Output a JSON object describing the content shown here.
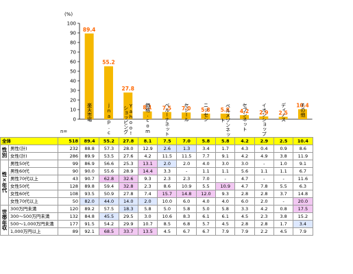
{
  "chart_data": {
    "type": "bar",
    "y_unit": "(%)",
    "ylim": [
      0,
      100
    ],
    "yticks": [
      0,
      10,
      20,
      30,
      40,
      50,
      60,
      70,
      80,
      90,
      100
    ],
    "color_bar": "#f5b800",
    "color_label": "#ff6600",
    "categories": [
      "楽天市場",
      "jnap.co.jp",
      "Yahoo!ショッピング",
      "価格.com",
      "ベルーナネット",
      "セシール",
      "ニッセン",
      "ベルメゾンネット",
      "セブンネット",
      "イオンショップ",
      "ディノス",
      "その他"
    ],
    "values": [
      89.4,
      55.2,
      27.8,
      8.1,
      7.5,
      7.0,
      5.8,
      5.8,
      4.2,
      2.9,
      2.5,
      10.4
    ],
    "value_labels": [
      "89.4",
      "55.2",
      "27.8",
      "8.1",
      "7.5",
      "7.0",
      "5.8",
      "5.8",
      "4.2",
      "2.9",
      "2.5",
      "10.4"
    ]
  },
  "header_labels": [
    "楽天市場",
    "jnap.co.jp",
    "Yahoo!ショッピング",
    "価格.com",
    "ベルーナネット",
    "セシール",
    "ニッセン",
    "ベルメゾンネット",
    "セブンネット",
    "イオンショップ",
    "ディノス",
    "その他"
  ],
  "n_caption": "n=",
  "table": {
    "groups": {
      "sex": "性別",
      "age": "性×年代",
      "income": "世帯年収"
    },
    "total": {
      "label": "全体",
      "n": "518",
      "v": [
        "89.4",
        "55.2",
        "27.8",
        "8.1",
        "7.5",
        "7.0",
        "5.8",
        "5.8",
        "4.2",
        "2.9",
        "2.5",
        "10.4"
      ]
    },
    "sex_rows": [
      {
        "label": "男性(計)",
        "n": "232",
        "v": [
          "88.8",
          "57.3",
          "28.0",
          "12.9",
          "2.6",
          "1.3",
          "3.4",
          "1.7",
          "4.3",
          "0.4",
          "0.9",
          "8.6"
        ]
      },
      {
        "label": "女性(計)",
        "n": "286",
        "v": [
          "89.9",
          "53.5",
          "27.6",
          "4.2",
          "11.5",
          "11.5",
          "7.7",
          "9.1",
          "4.2",
          "4.9",
          "3.8",
          "11.9"
        ]
      }
    ],
    "age_rows": [
      {
        "label": "男性50代",
        "n": "99",
        "v": [
          "86.9",
          "56.6",
          "25.3",
          "13.1",
          "2.0",
          "2.0",
          "4.0",
          "3.0",
          "3.0",
          "-",
          "1.0",
          "9.1"
        ]
      },
      {
        "label": "男性60代",
        "n": "90",
        "v": [
          "90.0",
          "55.6",
          "28.9",
          "14.4",
          "3.3",
          "-",
          "1.1",
          "1.1",
          "5.6",
          "1.1",
          "1.1",
          "6.7"
        ]
      },
      {
        "label": "男性70代以上",
        "n": "43",
        "v": [
          "90.7",
          "62.8",
          "32.6",
          "9.3",
          "2.3",
          "2.3",
          "7.0",
          "-",
          "4.7",
          "-",
          "-",
          "11.6"
        ]
      },
      {
        "label": "女性50代",
        "n": "128",
        "v": [
          "89.8",
          "59.4",
          "32.8",
          "2.3",
          "8.6",
          "10.9",
          "5.5",
          "10.9",
          "4.7",
          "7.8",
          "5.5",
          "6.3"
        ]
      },
      {
        "label": "女性60代",
        "n": "108",
        "v": [
          "93.5",
          "50.9",
          "27.8",
          "7.4",
          "15.7",
          "14.8",
          "12.0",
          "9.3",
          "2.8",
          "2.8",
          "3.7",
          "14.8"
        ]
      },
      {
        "label": "女性70代以上",
        "n": "50",
        "v": [
          "82.0",
          "44.0",
          "14.0",
          "2.0",
          "10.0",
          "6.0",
          "4.0",
          "4.0",
          "6.0",
          "2.0",
          "-",
          "20.0"
        ]
      }
    ],
    "income_rows": [
      {
        "label": "300万円未満",
        "n": "120",
        "v": [
          "89.2",
          "57.5",
          "18.3",
          "5.8",
          "5.0",
          "5.8",
          "5.0",
          "5.8",
          "3.3",
          "4.2",
          "0.8",
          "17.5"
        ]
      },
      {
        "label": "300～500万円未満",
        "n": "132",
        "v": [
          "84.8",
          "45.5",
          "29.5",
          "3.0",
          "10.6",
          "8.3",
          "6.1",
          "6.1",
          "4.5",
          "2.3",
          "3.8",
          "15.2"
        ]
      },
      {
        "label": "500～1,000万円未満",
        "n": "177",
        "v": [
          "91.5",
          "54.2",
          "29.9",
          "10.7",
          "8.5",
          "6.8",
          "5.7",
          "4.5",
          "2.8",
          "2.8",
          "1.7",
          "3.4"
        ]
      },
      {
        "label": "1,000万円以上",
        "n": "89",
        "v": [
          "92.1",
          "68.5",
          "33.7",
          "13.5",
          "4.5",
          "6.7",
          "6.7",
          "7.9",
          "7.9",
          "2.2",
          "4.5",
          "7.9"
        ]
      }
    ]
  }
}
